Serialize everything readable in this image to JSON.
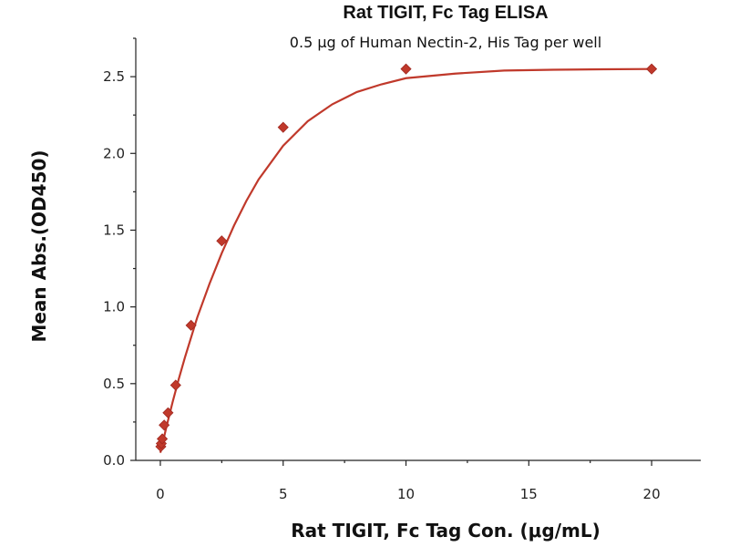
{
  "chart_data": {
    "type": "scatter",
    "title": "Rat TIGIT, Fc Tag ELISA",
    "subtitle": "0.5 μg of Human Nectin-2, His Tag per well",
    "xlabel": "Rat TIGIT, Fc Tag Con. (μg/mL)",
    "ylabel": "Mean Abs.(OD450)",
    "xlim": [
      -1,
      22
    ],
    "ylim": [
      0,
      2.75
    ],
    "x_ticks": [
      0,
      5,
      10,
      15,
      20
    ],
    "x_tick_labels": [
      "0",
      "5",
      "10",
      "15",
      "20"
    ],
    "y_ticks": [
      0.0,
      0.5,
      1.0,
      1.5,
      2.0,
      2.5
    ],
    "y_tick_labels": [
      "0.0",
      "0.5",
      "1.0",
      "1.5",
      "2.0",
      "2.5"
    ],
    "grid": false,
    "color": "#c0392b",
    "series": [
      {
        "points": [
          {
            "x": 0.0195,
            "y": 0.09
          },
          {
            "x": 0.039,
            "y": 0.11
          },
          {
            "x": 0.078,
            "y": 0.14
          },
          {
            "x": 0.156,
            "y": 0.23
          },
          {
            "x": 0.3125,
            "y": 0.31
          },
          {
            "x": 0.625,
            "y": 0.49
          },
          {
            "x": 1.25,
            "y": 0.88
          },
          {
            "x": 2.5,
            "y": 1.43
          },
          {
            "x": 5,
            "y": 2.17
          },
          {
            "x": 10,
            "y": 2.55
          },
          {
            "x": 20,
            "y": 2.55
          }
        ],
        "fit_curve": {
          "x": [
            0,
            0.25,
            0.5,
            0.75,
            1,
            1.5,
            2,
            2.5,
            3,
            3.5,
            4,
            5,
            6,
            7,
            8,
            9,
            10,
            12,
            14,
            16,
            18,
            20
          ],
          "y": [
            0.05,
            0.22,
            0.38,
            0.53,
            0.67,
            0.93,
            1.15,
            1.35,
            1.53,
            1.69,
            1.83,
            2.05,
            2.21,
            2.32,
            2.4,
            2.45,
            2.49,
            2.52,
            2.54,
            2.545,
            2.548,
            2.55
          ]
        }
      }
    ]
  }
}
